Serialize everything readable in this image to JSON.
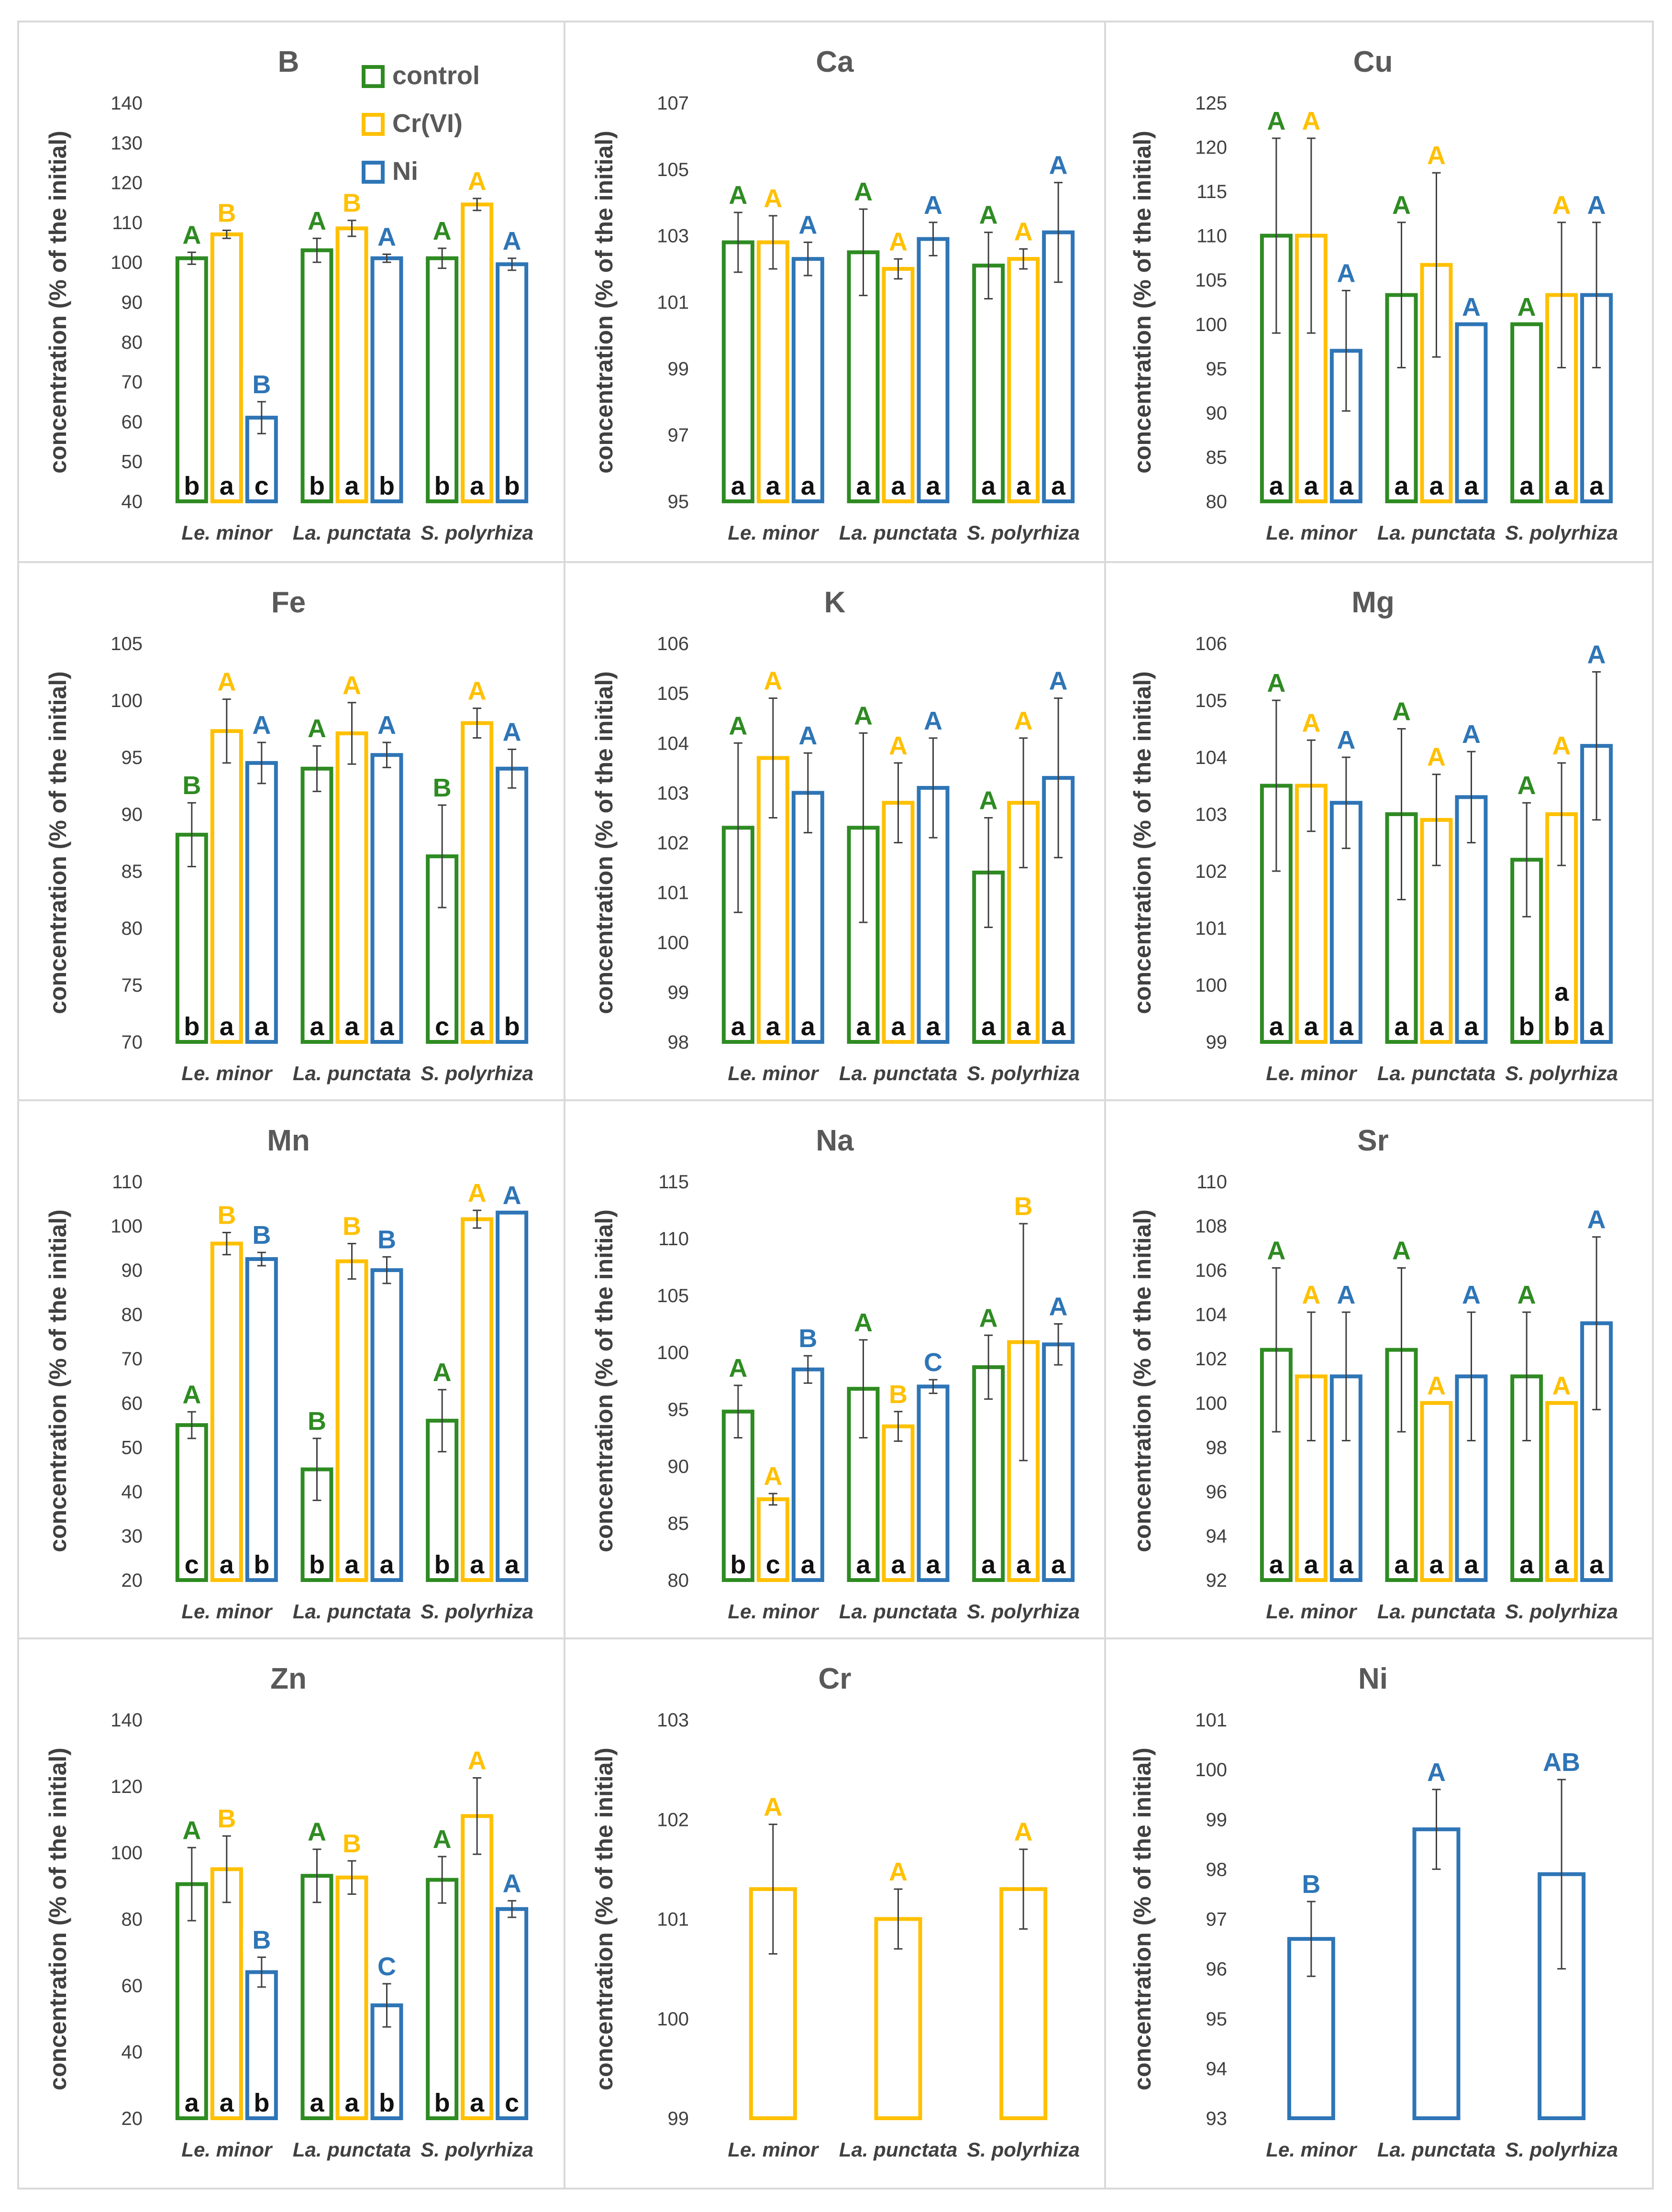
{
  "colors": {
    "control": "#2E8B22",
    "crvi": "#FFC000",
    "ni": "#2E75B6",
    "axis": "#404040",
    "grid_border": "#d9d9d9"
  },
  "legend": {
    "control": "control",
    "crvi": "Cr(VI)",
    "ni": "Ni"
  },
  "ylabel": "concentration (% of the initial)",
  "categories": [
    "Le. minor",
    "La. punctata",
    "S. polyrhiza"
  ],
  "chart_data": [
    {
      "type": "bar",
      "title": "B",
      "ylim": [
        40,
        140
      ],
      "yticks": [
        40,
        50,
        60,
        70,
        80,
        90,
        100,
        110,
        120,
        130,
        140
      ],
      "series": [
        {
          "name": "control",
          "values": [
            101,
            103,
            101
          ],
          "errors": [
            1.5,
            3,
            2.5
          ],
          "upper": [
            "A",
            "A",
            "A"
          ],
          "lower": [
            "b",
            "b",
            "b"
          ]
        },
        {
          "name": "Cr(VI)",
          "values": [
            107,
            108.5,
            114.5
          ],
          "errors": [
            1,
            2,
            1.5
          ],
          "upper": [
            "B",
            "B",
            "A"
          ],
          "lower": [
            "a",
            "a",
            "a"
          ]
        },
        {
          "name": "Ni",
          "values": [
            61,
            101,
            99.5
          ],
          "errors": [
            4,
            1,
            1.5
          ],
          "upper": [
            "B",
            "A",
            "A"
          ],
          "lower": [
            "c",
            "b",
            "b"
          ]
        }
      ]
    },
    {
      "type": "bar",
      "title": "Ca",
      "ylim": [
        95,
        107
      ],
      "yticks": [
        95,
        97,
        99,
        101,
        103,
        105,
        107
      ],
      "series": [
        {
          "name": "control",
          "values": [
            102.8,
            102.5,
            102.1
          ],
          "errors": [
            0.9,
            1.3,
            1.0
          ],
          "upper": [
            "A",
            "A",
            "A"
          ],
          "lower": [
            "a",
            "a",
            "a"
          ]
        },
        {
          "name": "Cr(VI)",
          "values": [
            102.8,
            102.0,
            102.3
          ],
          "errors": [
            0.8,
            0.3,
            0.3
          ],
          "upper": [
            "A",
            "A",
            "A"
          ],
          "lower": [
            "a",
            "a",
            "a"
          ]
        },
        {
          "name": "Ni",
          "values": [
            102.3,
            102.9,
            103.1
          ],
          "errors": [
            0.5,
            0.5,
            1.5
          ],
          "upper": [
            "A",
            "A",
            "A"
          ],
          "lower": [
            "a",
            "a",
            "a"
          ]
        }
      ]
    },
    {
      "type": "bar",
      "title": "Cu",
      "ylim": [
        80,
        125
      ],
      "yticks": [
        80,
        85,
        90,
        95,
        100,
        105,
        110,
        115,
        120,
        125
      ],
      "series": [
        {
          "name": "control",
          "values": [
            110,
            103.3,
            100
          ],
          "errors": [
            11,
            8.2,
            0
          ],
          "upper": [
            "A",
            "A",
            "A"
          ],
          "lower": [
            "a",
            "a",
            "a"
          ]
        },
        {
          "name": "Cr(VI)",
          "values": [
            110,
            106.7,
            103.3
          ],
          "errors": [
            11,
            10.4,
            8.2
          ],
          "upper": [
            "A",
            "A",
            "A"
          ],
          "lower": [
            "a",
            "a",
            "a"
          ]
        },
        {
          "name": "Ni",
          "values": [
            97,
            100,
            103.3
          ],
          "errors": [
            6.8,
            0,
            8.2
          ],
          "upper": [
            "A",
            "A",
            "A"
          ],
          "lower": [
            "a",
            "a",
            "a"
          ]
        }
      ]
    },
    {
      "type": "bar",
      "title": "Fe",
      "ylim": [
        70,
        105
      ],
      "yticks": [
        70,
        75,
        80,
        85,
        90,
        95,
        100,
        105
      ],
      "series": [
        {
          "name": "control",
          "values": [
            88.2,
            94,
            86.3
          ],
          "errors": [
            2.8,
            2,
            4.5
          ],
          "upper": [
            "B",
            "A",
            "B"
          ],
          "lower": [
            "b",
            "a",
            "c"
          ]
        },
        {
          "name": "Cr(VI)",
          "values": [
            97.3,
            97.1,
            98
          ],
          "errors": [
            2.8,
            2.7,
            1.3
          ],
          "upper": [
            "A",
            "A",
            "A"
          ],
          "lower": [
            "a",
            "a",
            "a"
          ]
        },
        {
          "name": "Ni",
          "values": [
            94.5,
            95.2,
            94
          ],
          "errors": [
            1.8,
            1.1,
            1.7
          ],
          "upper": [
            "A",
            "A",
            "A"
          ],
          "lower": [
            "a",
            "a",
            "b"
          ]
        }
      ]
    },
    {
      "type": "bar",
      "title": "K",
      "ylim": [
        98,
        106
      ],
      "yticks": [
        98,
        99,
        100,
        101,
        102,
        103,
        104,
        105,
        106
      ],
      "series": [
        {
          "name": "control",
          "values": [
            102.3,
            102.3,
            101.4
          ],
          "errors": [
            1.7,
            1.9,
            1.1
          ],
          "upper": [
            "A",
            "A",
            "A"
          ],
          "lower": [
            "a",
            "a",
            "a"
          ]
        },
        {
          "name": "Cr(VI)",
          "values": [
            103.7,
            102.8,
            102.8
          ],
          "errors": [
            1.2,
            0.8,
            1.3
          ],
          "upper": [
            "A",
            "A",
            "A"
          ],
          "lower": [
            "a",
            "a",
            "a"
          ]
        },
        {
          "name": "Ni",
          "values": [
            103,
            103.1,
            103.3
          ],
          "errors": [
            0.8,
            1.0,
            1.6
          ],
          "upper": [
            "A",
            "A",
            "A"
          ],
          "lower": [
            "a",
            "a",
            "a"
          ]
        }
      ]
    },
    {
      "type": "bar",
      "title": "Mg",
      "ylim": [
        99,
        106
      ],
      "yticks": [
        99,
        100,
        101,
        102,
        103,
        104,
        105,
        106
      ],
      "series": [
        {
          "name": "control",
          "values": [
            103.5,
            103,
            102.2
          ],
          "errors": [
            1.5,
            1.5,
            1.0
          ],
          "upper": [
            "A",
            "A",
            "A"
          ],
          "lower": [
            "a",
            "a",
            "b"
          ]
        },
        {
          "name": "Cr(VI)",
          "values": [
            103.5,
            102.9,
            103
          ],
          "errors": [
            0.8,
            0.8,
            0.9
          ],
          "upper": [
            "A",
            "A",
            "A"
          ],
          "lower": [
            "a",
            "a",
            "ab"
          ]
        },
        {
          "name": "Ni",
          "values": [
            103.2,
            103.3,
            104.2
          ],
          "errors": [
            0.8,
            0.8,
            1.3
          ],
          "upper": [
            "A",
            "A",
            "A"
          ],
          "lower": [
            "a",
            "a",
            "a"
          ]
        }
      ]
    },
    {
      "type": "bar",
      "title": "Mn",
      "ylim": [
        20,
        110
      ],
      "yticks": [
        20,
        30,
        40,
        50,
        60,
        70,
        80,
        90,
        100,
        110
      ],
      "series": [
        {
          "name": "control",
          "values": [
            55,
            45,
            56
          ],
          "errors": [
            3,
            7,
            7
          ],
          "upper": [
            "A",
            "B",
            "A"
          ],
          "lower": [
            "c",
            "b",
            "b"
          ]
        },
        {
          "name": "Cr(VI)",
          "values": [
            96,
            92,
            101.5
          ],
          "errors": [
            2.5,
            4,
            2
          ],
          "upper": [
            "B",
            "B",
            "A"
          ],
          "lower": [
            "a",
            "a",
            "a"
          ]
        },
        {
          "name": "Ni",
          "values": [
            92.5,
            90,
            103
          ],
          "errors": [
            1.5,
            3,
            0
          ],
          "upper": [
            "B",
            "B",
            "A"
          ],
          "lower": [
            "b",
            "a",
            "a"
          ]
        }
      ]
    },
    {
      "type": "bar",
      "title": "Na",
      "ylim": [
        80,
        115
      ],
      "yticks": [
        80,
        85,
        90,
        95,
        100,
        105,
        110,
        115
      ],
      "series": [
        {
          "name": "control",
          "values": [
            94.8,
            96.8,
            98.7
          ],
          "errors": [
            2.3,
            4.3,
            2.8
          ],
          "upper": [
            "A",
            "A",
            "A"
          ],
          "lower": [
            "b",
            "a",
            "a"
          ]
        },
        {
          "name": "Cr(VI)",
          "values": [
            87.1,
            93.5,
            100.9
          ],
          "errors": [
            0.5,
            1.3,
            10.4
          ],
          "upper": [
            "A",
            "B",
            "B"
          ],
          "lower": [
            "c",
            "a",
            "a"
          ]
        },
        {
          "name": "Ni",
          "values": [
            98.5,
            97,
            100.7
          ],
          "errors": [
            1.2,
            0.6,
            1.8
          ],
          "upper": [
            "B",
            "C",
            "A"
          ],
          "lower": [
            "a",
            "a",
            "a"
          ]
        }
      ]
    },
    {
      "type": "bar",
      "title": "Sr",
      "ylim": [
        92,
        110
      ],
      "yticks": [
        92,
        94,
        96,
        98,
        100,
        102,
        104,
        106,
        108,
        110
      ],
      "series": [
        {
          "name": "control",
          "values": [
            102.4,
            102.4,
            101.2
          ],
          "errors": [
            3.7,
            3.7,
            2.9
          ],
          "upper": [
            "A",
            "A",
            "A"
          ],
          "lower": [
            "a",
            "a",
            "a"
          ]
        },
        {
          "name": "Cr(VI)",
          "values": [
            101.2,
            100,
            100
          ],
          "errors": [
            2.9,
            0,
            0
          ],
          "upper": [
            "A",
            "A",
            "A"
          ],
          "lower": [
            "a",
            "a",
            "a"
          ]
        },
        {
          "name": "Ni",
          "values": [
            101.2,
            101.2,
            103.6
          ],
          "errors": [
            2.9,
            2.9,
            3.9
          ],
          "upper": [
            "A",
            "A",
            "A"
          ],
          "lower": [
            "a",
            "a",
            "a"
          ]
        }
      ]
    },
    {
      "type": "bar",
      "title": "Zn",
      "ylim": [
        20,
        140
      ],
      "yticks": [
        20,
        40,
        60,
        80,
        100,
        120,
        140
      ],
      "series": [
        {
          "name": "control",
          "values": [
            90.5,
            93,
            91.8
          ],
          "errors": [
            11,
            8,
            7
          ],
          "upper": [
            "A",
            "A",
            "A"
          ],
          "lower": [
            "a",
            "a",
            "b"
          ]
        },
        {
          "name": "Cr(VI)",
          "values": [
            95,
            92.5,
            111
          ],
          "errors": [
            10,
            5,
            11.5
          ],
          "upper": [
            "B",
            "B",
            "A"
          ],
          "lower": [
            "a",
            "a",
            "a"
          ]
        },
        {
          "name": "Ni",
          "values": [
            64,
            54,
            83
          ],
          "errors": [
            4.5,
            6.5,
            2.5
          ],
          "upper": [
            "B",
            "C",
            "A"
          ],
          "lower": [
            "b",
            "b",
            "c"
          ]
        }
      ]
    },
    {
      "type": "bar",
      "title": "Cr",
      "ylim": [
        99,
        103
      ],
      "yticks": [
        99,
        100,
        101,
        102,
        103
      ],
      "series": [
        {
          "name": "Cr(VI)",
          "values": [
            101.3,
            101,
            101.3
          ],
          "errors": [
            0.65,
            0.3,
            0.4
          ],
          "upper": [
            "A",
            "A",
            "A"
          ],
          "lower": [
            "",
            "",
            ""
          ]
        }
      ]
    },
    {
      "type": "bar",
      "title": "Ni",
      "ylim": [
        93,
        101
      ],
      "yticks": [
        93,
        94,
        95,
        96,
        97,
        98,
        99,
        100,
        101
      ],
      "series": [
        {
          "name": "Ni",
          "values": [
            96.6,
            98.8,
            97.9
          ],
          "errors": [
            0.75,
            0.8,
            1.9
          ],
          "upper": [
            "B",
            "A",
            "AB"
          ],
          "lower": [
            "",
            "",
            ""
          ]
        }
      ]
    }
  ]
}
